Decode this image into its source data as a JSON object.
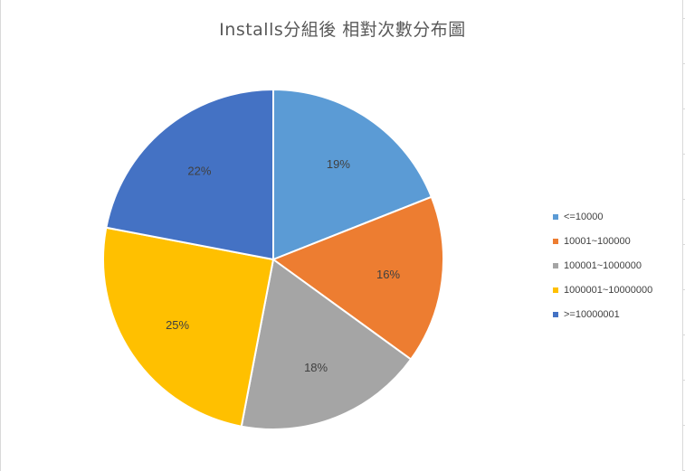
{
  "chart_data": {
    "type": "pie",
    "title": "Installs分組後 相對次數分布圖",
    "categories": [
      "<=10000",
      "10001~100000",
      "100001~1000000",
      "1000001~10000000",
      ">=10000001"
    ],
    "values": [
      19,
      16,
      18,
      25,
      22
    ],
    "data_labels": [
      "19%",
      "16%",
      "18%",
      "25%",
      "22%"
    ],
    "colors": [
      "#5B9BD5",
      "#ED7D31",
      "#A5A5A5",
      "#FFC000",
      "#4472C4"
    ],
    "label_colors": [
      "#ffffff",
      "#404040",
      "#404040",
      "#404040",
      "#ffffff"
    ],
    "legend_position": "right"
  }
}
